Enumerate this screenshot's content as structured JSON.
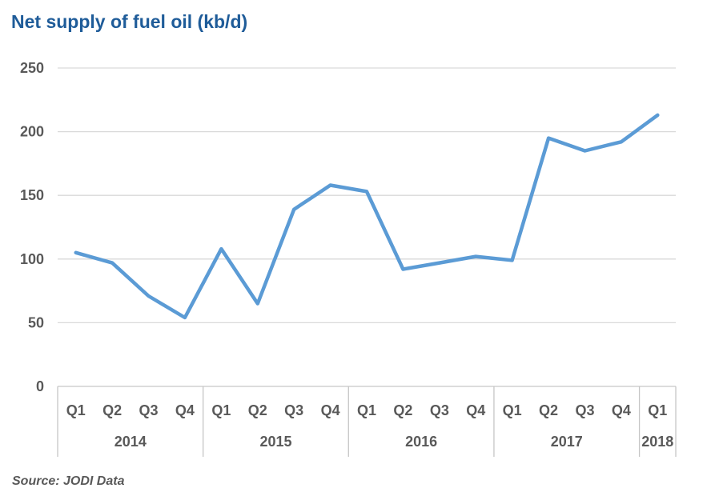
{
  "title": "Net supply of fuel oil (kb/d)",
  "source": "Source: JODI Data",
  "chart_data": {
    "type": "line",
    "title": "Net supply of fuel oil (kb/d)",
    "xlabel": "",
    "ylabel": "",
    "ylim": [
      0,
      250
    ],
    "yticks": [
      0,
      50,
      100,
      150,
      200,
      250
    ],
    "grid": true,
    "legend": "none",
    "categories": [
      "2014-Q1",
      "2014-Q2",
      "2014-Q3",
      "2014-Q4",
      "2015-Q1",
      "2015-Q2",
      "2015-Q3",
      "2015-Q4",
      "2016-Q1",
      "2016-Q2",
      "2016-Q3",
      "2016-Q4",
      "2017-Q1",
      "2017-Q2",
      "2017-Q3",
      "2017-Q4",
      "2018-Q1"
    ],
    "year_groups": [
      {
        "year": "2014",
        "quarters": [
          "Q1",
          "Q2",
          "Q3",
          "Q4"
        ]
      },
      {
        "year": "2015",
        "quarters": [
          "Q1",
          "Q2",
          "Q3",
          "Q4"
        ]
      },
      {
        "year": "2016",
        "quarters": [
          "Q1",
          "Q2",
          "Q3",
          "Q4"
        ]
      },
      {
        "year": "2017",
        "quarters": [
          "Q1",
          "Q2",
          "Q3",
          "Q4"
        ]
      },
      {
        "year": "2018",
        "quarters": [
          "Q1"
        ]
      }
    ],
    "series": [
      {
        "name": "Net supply of fuel oil (kb/d)",
        "values": [
          105,
          97,
          71,
          54,
          108,
          65,
          139,
          158,
          153,
          92,
          97,
          102,
          99,
          195,
          185,
          192,
          213
        ]
      }
    ]
  },
  "colors": {
    "title": "#1F5C99",
    "line": "#5B9BD5",
    "gridline": "#D9D9D9",
    "axis_line": "#C6C6C6",
    "tick_label": "#595959",
    "source_text": "#595959",
    "background": "#FFFFFF"
  }
}
